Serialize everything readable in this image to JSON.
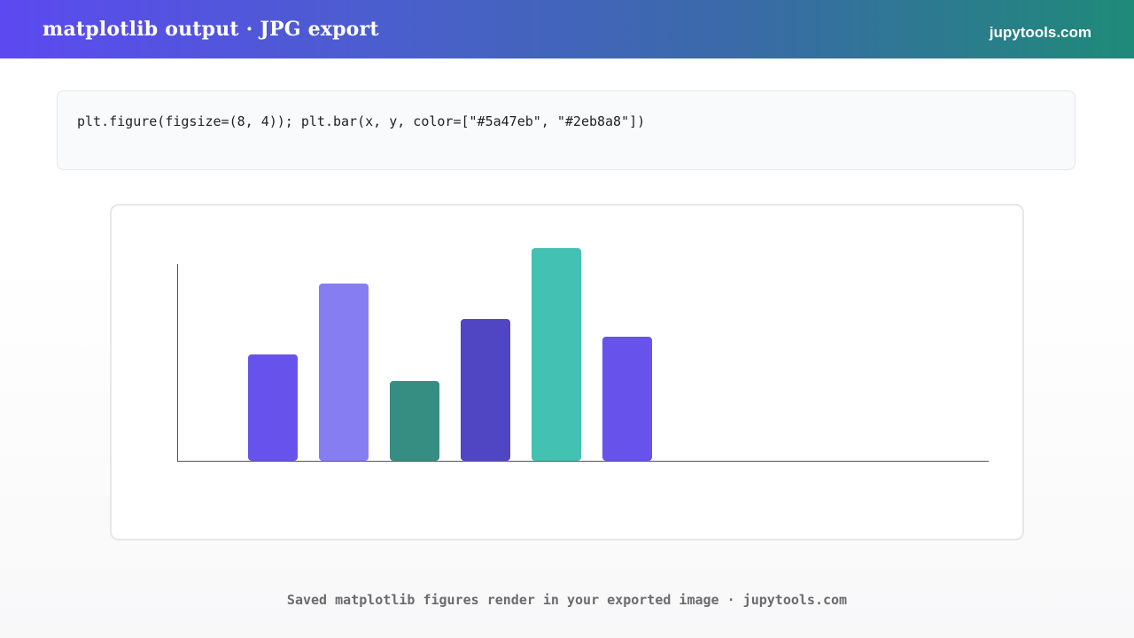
{
  "header": {
    "title": "matplotlib output · JPG export",
    "brand": "jupytools.com"
  },
  "code": {
    "text": "plt.figure(figsize=(8, 4)); plt.bar(x, y, color=[\"#5a47eb\", \"#2eb8a8\"])"
  },
  "chart_data": {
    "type": "bar",
    "categories": [
      "",
      "",
      "",
      "",
      "",
      ""
    ],
    "values": [
      30,
      50,
      22.5,
      40,
      60,
      35
    ],
    "colors": [
      "#6753ec",
      "#877df3",
      "#368e82",
      "#5046c3",
      "#43c1b2",
      "#6753ec"
    ],
    "ylim": [
      0,
      60
    ],
    "grid": false,
    "title": "",
    "xlabel": "",
    "ylabel": ""
  },
  "footer": {
    "text": "Saved matplotlib figures render in your exported image · jupytools.com"
  }
}
